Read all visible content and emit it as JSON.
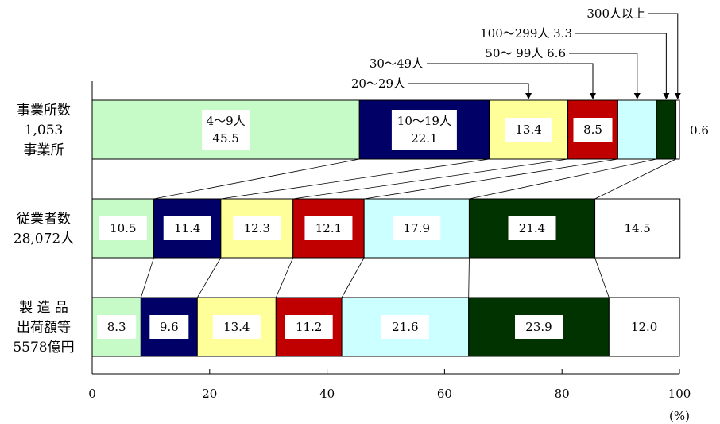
{
  "chart_data": {
    "type": "stacked-bar-100",
    "orientation": "horizontal",
    "xlim": [
      0,
      100
    ],
    "x_ticks": [
      "0",
      "20",
      "40",
      "60",
      "80",
      "100"
    ],
    "unit_label": "(%)",
    "categories": [
      {
        "lines": [
          "事業所数",
          "1,053",
          "事業所"
        ]
      },
      {
        "lines": [
          "従業者数",
          "28,072人"
        ]
      },
      {
        "lines": [
          "製 造 品",
          "出荷額等",
          "5578億円"
        ]
      }
    ],
    "series": [
      {
        "name": "4～9人",
        "color": "#c6fbc8",
        "values": [
          45.5,
          10.5,
          8.3
        ],
        "labels": [
          "45.5",
          "10.5",
          "8.3"
        ]
      },
      {
        "name": "10～19人",
        "color": "#000066",
        "values": [
          22.1,
          11.4,
          9.6
        ],
        "labels": [
          "22.1",
          "11.4",
          "9.6"
        ]
      },
      {
        "name": "20～29人",
        "color": "#ffff99",
        "values": [
          13.4,
          12.3,
          13.4
        ],
        "labels": [
          "13.4",
          "12.3",
          "13.4"
        ]
      },
      {
        "name": "30～49人",
        "color": "#c00000",
        "values": [
          8.5,
          12.1,
          11.2
        ],
        "labels": [
          "8.5",
          "12.1",
          "11.2"
        ]
      },
      {
        "name": "50～ 99人",
        "color": "#ccffff",
        "values": [
          6.6,
          17.9,
          21.6
        ],
        "labels": [
          "",
          "17.9",
          "21.6"
        ]
      },
      {
        "name": "100～299人",
        "color": "#003300",
        "values": [
          3.3,
          21.4,
          23.9
        ],
        "labels": [
          "",
          "21.4",
          "23.9"
        ]
      },
      {
        "name": "300人以上",
        "color": "#ffffff",
        "values": [
          0.6,
          14.5,
          12.0
        ],
        "labels": [
          "",
          "14.5",
          "12.0"
        ]
      }
    ],
    "first_bar_inline_names": [
      "4～9人",
      "10～19人"
    ],
    "callouts": [
      {
        "text": "20～29人",
        "series": 2
      },
      {
        "text": "30～49人",
        "series": 3
      },
      {
        "text": "50～ 99人  6.6",
        "series": 4
      },
      {
        "text": "100～299人  3.3",
        "series": 5
      },
      {
        "text": "300人以上",
        "series": 6
      }
    ],
    "outside_label": "0.6"
  }
}
